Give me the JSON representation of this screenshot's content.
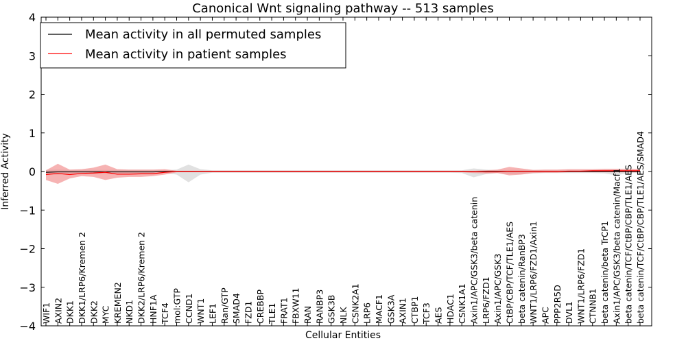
{
  "chart_data": {
    "type": "line",
    "title": "Canonical Wnt signaling pathway -- 513 samples",
    "xlabel": "Cellular Entities",
    "ylabel": "Inferred Activity",
    "ylim": [
      -4,
      4
    ],
    "yticks": [
      "4",
      "3",
      "2",
      "1",
      "0",
      "−1",
      "−2",
      "−3",
      "−4"
    ],
    "legend_position": "top-left",
    "categories": [
      "WIF1",
      "AXIN2",
      "DKK1",
      "DKK1/LRP6/Kremen 2",
      "DKK2",
      "MYC",
      "KREMEN2",
      "NKD1",
      "DKK2/LRP6/Kremen 2",
      "HNF1A",
      "TCF4",
      "mol:GTP",
      "CCND1",
      "WNT1",
      "LEF1",
      "Ran/GTP",
      "SMAD4",
      "FZD1",
      "CREBBP",
      "TLE1",
      "FRAT1",
      "FBXW11",
      "RAN",
      "RANBP3",
      "GSK3B",
      "NLK",
      "CSNK2A1",
      "LRP6",
      "MACF1",
      "GSK3A",
      "AXIN1",
      "CTBP1",
      "TCF3",
      "AES",
      "HDAC1",
      "CSNK1A1",
      "Axin1/APC/GSK3/beta catenin",
      "LRP6/FZD1",
      "Axin1/APC/GSK3",
      "CtBP/CBP/TCF/TLE1/AES",
      "beta catenin/RanBP3",
      "WNT1/LRP6/FZD1/Axin1",
      "APC",
      "PPP2R5D",
      "DVL1",
      "WNT1/LRP6/FZD1",
      "CTNNB1",
      "beta catenin/beta TrCP1",
      "Axin1/APC/GSK3/beta catenin/Macf1",
      "beta catenin/TCF/CtBP/CBP/TLE1/AES",
      "beta catenin/TCF/CtBP/CBP/TLE1/AES/SMAD4"
    ],
    "series": [
      {
        "name": "Mean activity in all permuted samples",
        "color": "#000000",
        "band_color": "#c8c8c8",
        "values": [
          -0.02,
          -0.01,
          -0.01,
          -0.01,
          -0.01,
          -0.01,
          -0.01,
          -0.01,
          -0.01,
          -0.01,
          0.0,
          0.0,
          0.0,
          0.0,
          0.0,
          0.0,
          0.0,
          0.0,
          0.0,
          0.0,
          0.0,
          0.0,
          0.0,
          0.0,
          0.0,
          0.0,
          0.0,
          0.0,
          0.0,
          0.0,
          0.0,
          0.0,
          0.0,
          0.0,
          0.0,
          0.0,
          0.0,
          0.0,
          0.0,
          0.0,
          0.0,
          0.0,
          0.0,
          0.0,
          0.0,
          0.0,
          0.0,
          0.0,
          0.0,
          0.0,
          0.0
        ],
        "upper": [
          0.04,
          0.05,
          0.04,
          0.04,
          0.04,
          0.04,
          0.04,
          0.04,
          0.04,
          0.04,
          0.03,
          0.05,
          0.18,
          0.06,
          0.03,
          0.03,
          0.03,
          0.03,
          0.03,
          0.03,
          0.03,
          0.03,
          0.03,
          0.03,
          0.03,
          0.03,
          0.03,
          0.03,
          0.03,
          0.03,
          0.03,
          0.03,
          0.03,
          0.03,
          0.03,
          0.03,
          0.08,
          0.05,
          0.03,
          0.04,
          0.04,
          0.04,
          0.03,
          0.03,
          0.03,
          0.03,
          0.03,
          0.03,
          0.05,
          0.03,
          0.03
        ],
        "lower": [
          -0.08,
          -0.08,
          -0.06,
          -0.06,
          -0.06,
          -0.06,
          -0.06,
          -0.06,
          -0.06,
          -0.06,
          -0.04,
          -0.08,
          -0.28,
          -0.08,
          -0.03,
          -0.03,
          -0.03,
          -0.03,
          -0.03,
          -0.03,
          -0.03,
          -0.03,
          -0.03,
          -0.03,
          -0.03,
          -0.03,
          -0.03,
          -0.03,
          -0.03,
          -0.03,
          -0.03,
          -0.03,
          -0.03,
          -0.03,
          -0.03,
          -0.04,
          -0.15,
          -0.07,
          -0.04,
          -0.06,
          -0.06,
          -0.05,
          -0.04,
          -0.04,
          -0.04,
          -0.04,
          -0.04,
          -0.05,
          -0.1,
          -0.04,
          -0.04
        ]
      },
      {
        "name": "Mean activity in patient samples",
        "color": "#ff0000",
        "band_color": "#f08080",
        "values": [
          -0.08,
          -0.05,
          -0.08,
          -0.05,
          -0.04,
          -0.02,
          -0.07,
          -0.07,
          -0.06,
          -0.06,
          -0.02,
          0.0,
          0.0,
          0.0,
          0.0,
          0.0,
          0.0,
          0.0,
          0.0,
          0.0,
          0.0,
          0.0,
          0.0,
          0.0,
          0.0,
          0.0,
          0.0,
          0.0,
          0.0,
          0.0,
          0.0,
          0.0,
          0.0,
          0.0,
          0.0,
          0.0,
          0.0,
          -0.01,
          -0.01,
          0.0,
          0.0,
          0.0,
          0.0,
          0.0,
          0.01,
          0.01,
          0.02,
          0.02,
          0.02,
          0.02,
          0.02
        ],
        "upper": [
          0.03,
          0.2,
          0.05,
          0.06,
          0.1,
          0.18,
          0.06,
          0.05,
          0.05,
          0.05,
          0.06,
          0.02,
          0.02,
          0.02,
          0.02,
          0.02,
          0.02,
          0.02,
          0.02,
          0.02,
          0.02,
          0.02,
          0.02,
          0.02,
          0.02,
          0.02,
          0.02,
          0.02,
          0.02,
          0.02,
          0.02,
          0.02,
          0.02,
          0.02,
          0.02,
          0.02,
          0.02,
          0.03,
          0.05,
          0.12,
          0.08,
          0.04,
          0.05,
          0.05,
          0.06,
          0.06,
          0.06,
          0.07,
          0.07,
          0.07,
          0.07
        ],
        "lower": [
          -0.22,
          -0.32,
          -0.18,
          -0.12,
          -0.14,
          -0.22,
          -0.16,
          -0.14,
          -0.14,
          -0.12,
          -0.08,
          -0.02,
          -0.02,
          -0.02,
          -0.02,
          -0.02,
          -0.02,
          -0.02,
          -0.02,
          -0.02,
          -0.02,
          -0.02,
          -0.02,
          -0.02,
          -0.02,
          -0.02,
          -0.02,
          -0.02,
          -0.02,
          -0.02,
          -0.02,
          -0.02,
          -0.02,
          -0.02,
          -0.02,
          -0.02,
          -0.04,
          -0.05,
          -0.04,
          -0.1,
          -0.08,
          -0.04,
          -0.03,
          -0.03,
          -0.02,
          -0.02,
          -0.02,
          -0.02,
          -0.02,
          -0.02,
          -0.02
        ]
      }
    ]
  }
}
